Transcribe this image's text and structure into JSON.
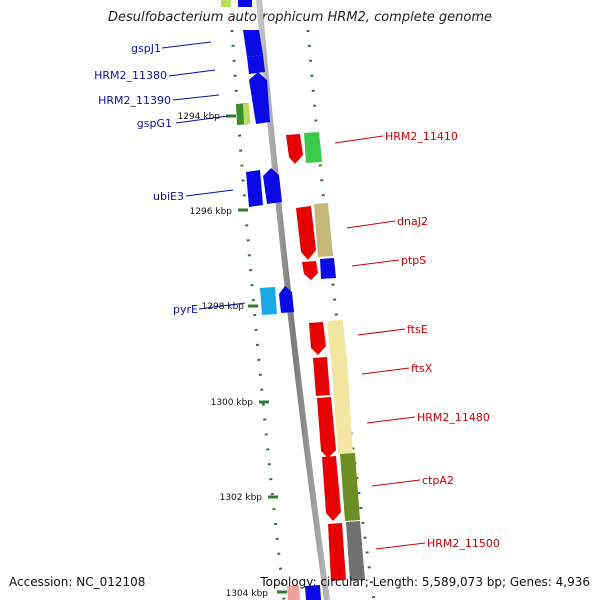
{
  "title": "Desulfobacterium autotrophicum HRM2, complete genome",
  "accession": "Accession: NC_012108",
  "topology": "Topology: circular; Length: 5,589,073 bp; Genes: 4,936",
  "colors": {
    "backbone": "#8c8c8c",
    "tick": "#2e7d32",
    "left_label": "#0b12a8",
    "right_label": "#cc0000",
    "red": "#e60000",
    "blue": "#0a0ae6",
    "green": "#3cc84a",
    "khaki": "#c4b978",
    "pale_yellow": "#f1e7a0",
    "olive": "#6b8f22",
    "gray": "#707070",
    "cyan": "#19a8e8",
    "lime": "#9bd23a"
  },
  "scale_labels": [
    "1294 kbp",
    "1296 kbp",
    "1298 kbp",
    "1300 kbp",
    "1302 kbp",
    "1304 kbp"
  ],
  "left_genes": [
    "gspJ1",
    "HRM2_11380",
    "HRM2_11390",
    "gspG1",
    "ubiE3",
    "pyrE"
  ],
  "right_genes": [
    "HRM2_11410",
    "dnaJ2",
    "ptpS",
    "ftsE",
    "ftsX",
    "HRM2_11480",
    "ctpA2",
    "HRM2_11500"
  ]
}
